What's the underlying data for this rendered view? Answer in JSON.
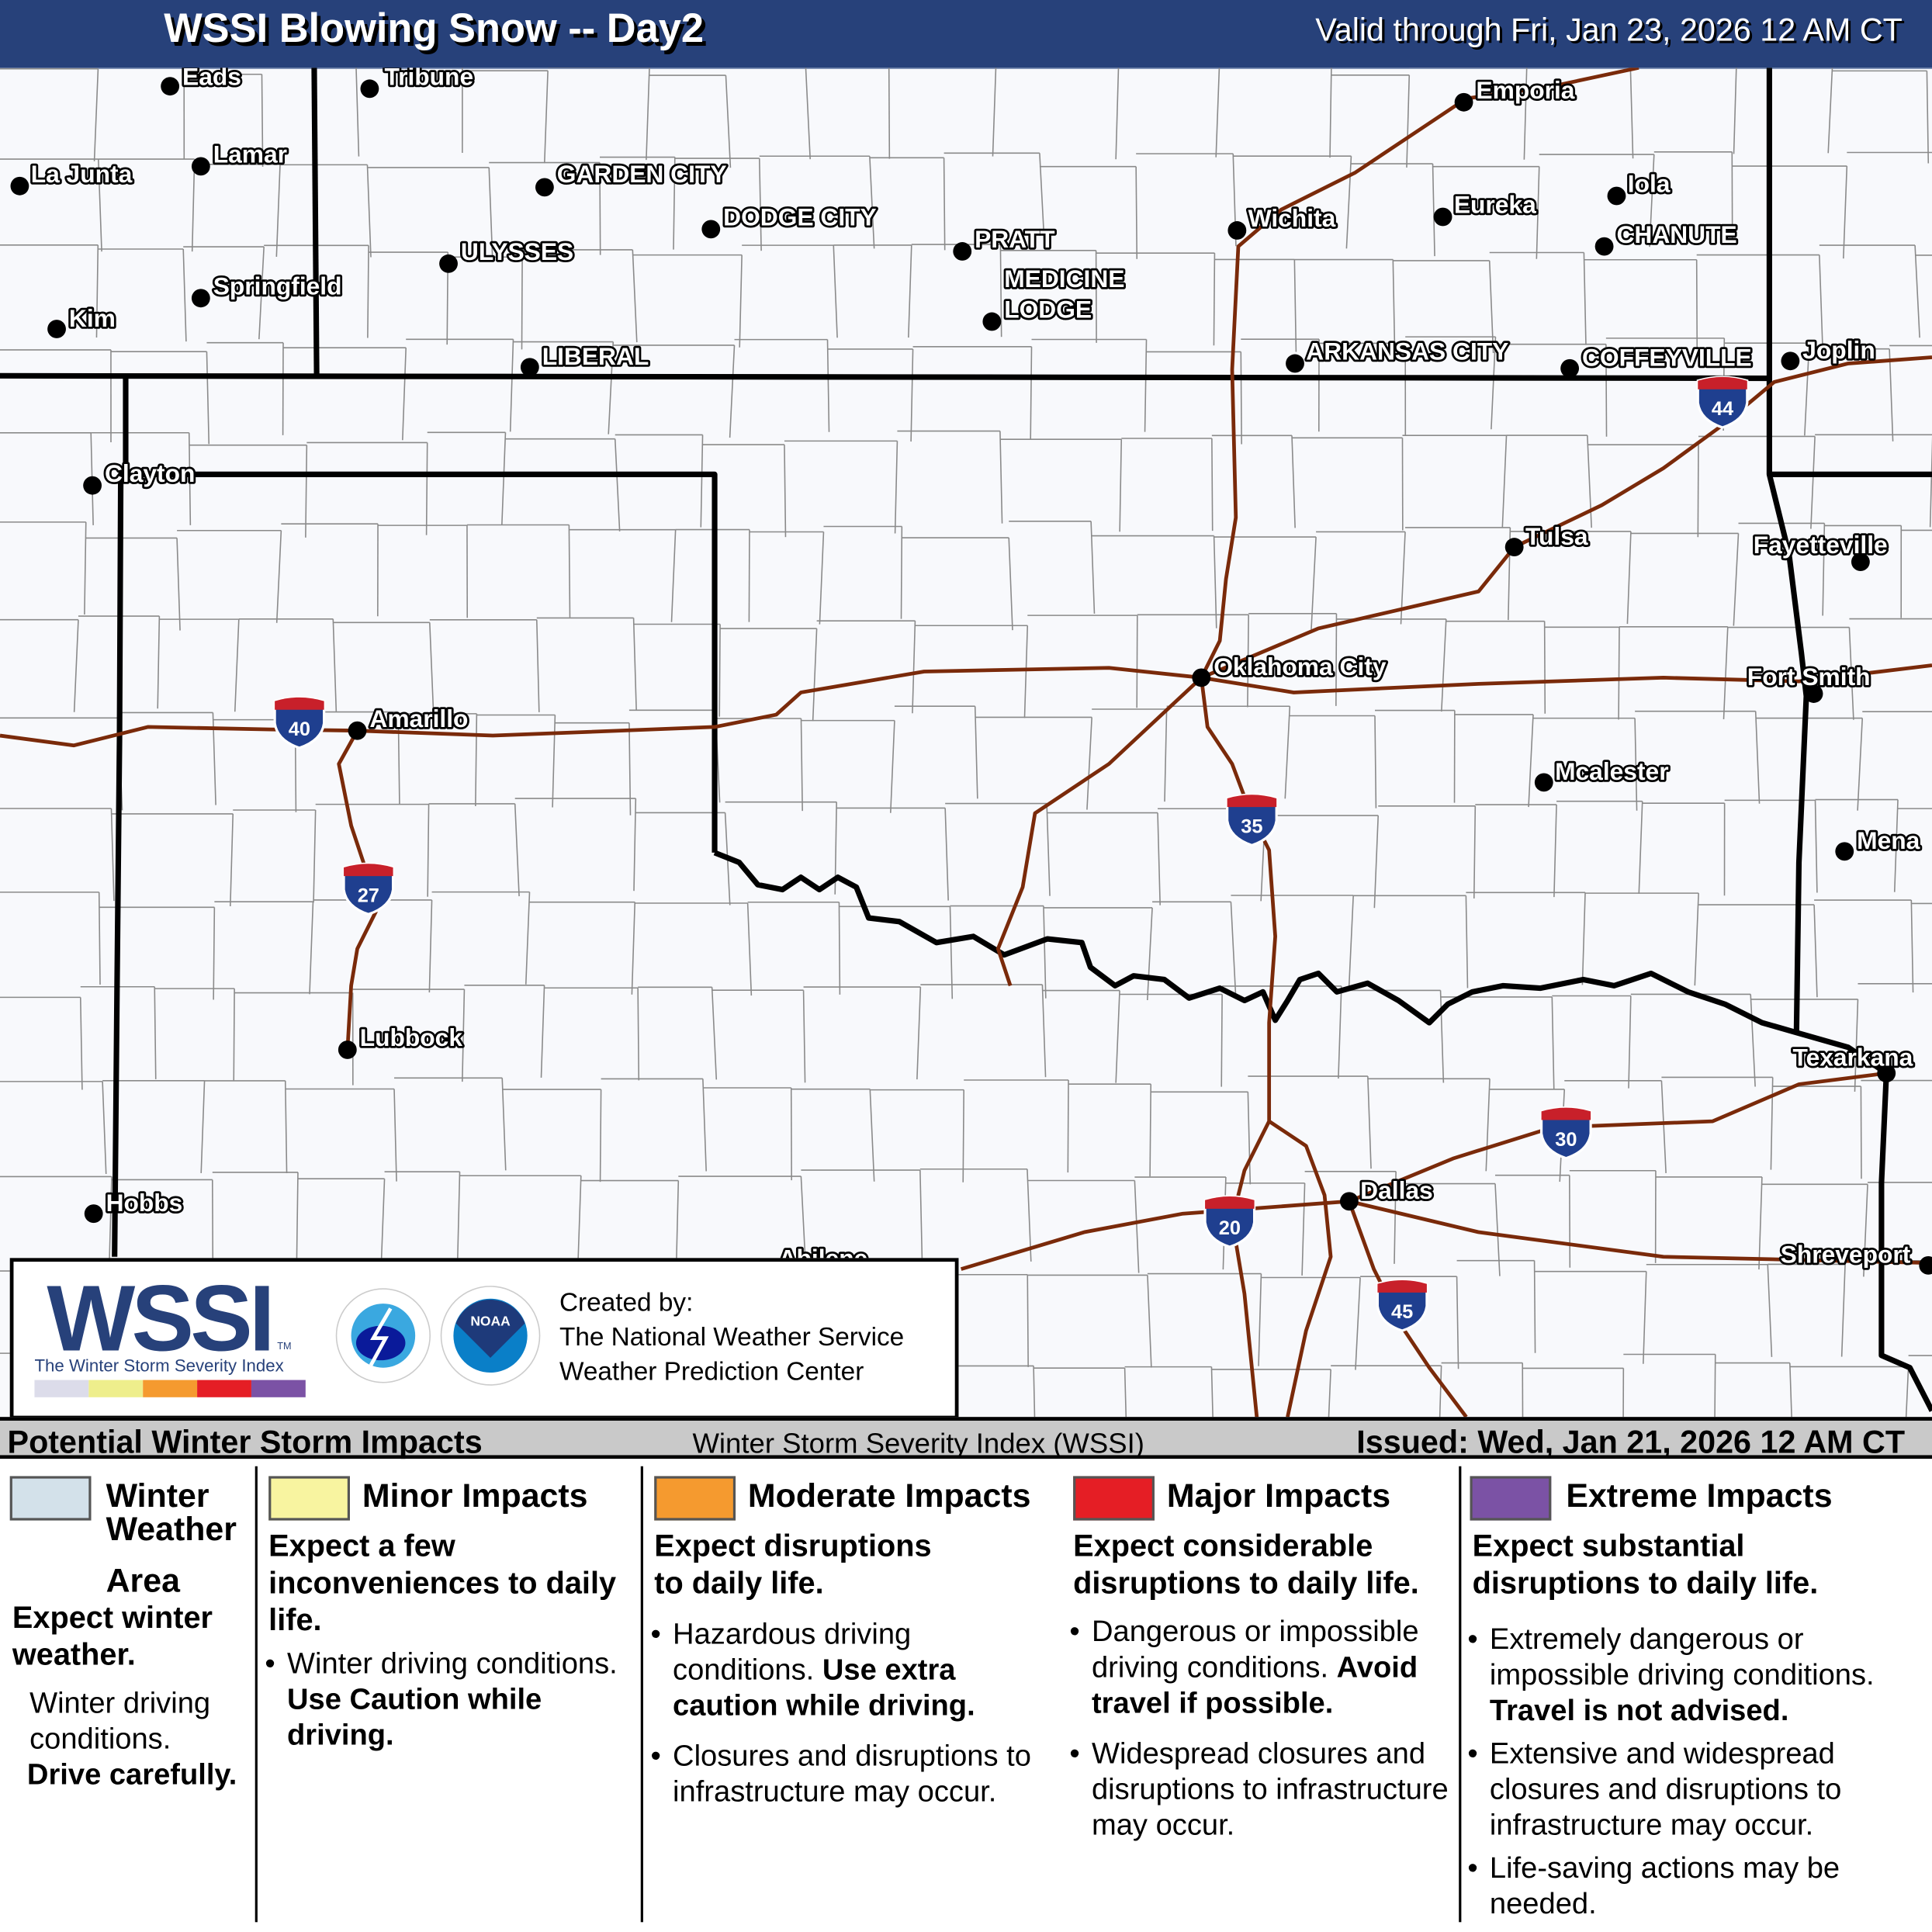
{
  "header": {
    "title": "WSSI Blowing Snow -- Day2",
    "valid": "Valid through Fri, Jan 23, 2026 12 AM CT"
  },
  "colors": {
    "header_bg": "#27417a",
    "interstate": "#7a2a0a",
    "winter_weather_area": "#d3e1ea",
    "minor": "#f8f4a0",
    "moderate": "#f59a2f",
    "major": "#e51e25",
    "extreme": "#7b52a5"
  },
  "cities": [
    {
      "name": "Eads",
      "d": [
        138,
        70
      ],
      "l": [
        148,
        62
      ]
    },
    {
      "name": "Tribune",
      "d": [
        300,
        72
      ],
      "l": [
        312,
        62
      ]
    },
    {
      "name": "La Junta",
      "d": [
        16,
        151
      ],
      "l": [
        25,
        141
      ]
    },
    {
      "name": "Lamar",
      "d": [
        163,
        135
      ],
      "l": [
        173,
        125
      ]
    },
    {
      "name": "GARDEN CITY",
      "d": [
        442,
        152
      ],
      "l": [
        452,
        141
      ]
    },
    {
      "name": "DODGE CITY",
      "d": [
        577,
        186
      ],
      "l": [
        587,
        176
      ]
    },
    {
      "name": "ULYSSES",
      "d": [
        364,
        214
      ],
      "l": [
        374,
        204
      ]
    },
    {
      "name": "Springfield",
      "d": [
        163,
        242
      ],
      "l": [
        173,
        232
      ]
    },
    {
      "name": "Kim",
      "d": [
        46,
        267
      ],
      "l": [
        56,
        258
      ]
    },
    {
      "name": "LIBERAL",
      "d": [
        430,
        298
      ],
      "l": [
        440,
        289
      ]
    },
    {
      "name": "PRATT",
      "d": [
        781,
        204
      ],
      "l": [
        791,
        194
      ]
    },
    {
      "name": "MEDICINE",
      "d": [
        805,
        261
      ],
      "l": [
        815,
        226
      ]
    },
    {
      "name": "LODGE",
      "d": null,
      "l": [
        815,
        251
      ]
    },
    {
      "name": "Wichita",
      "d": [
        1004,
        187
      ],
      "l": [
        1013,
        177
      ]
    },
    {
      "name": "Emporia",
      "d": [
        1188,
        83
      ],
      "l": [
        1198,
        73
      ]
    },
    {
      "name": "Eureka",
      "d": [
        1171,
        176
      ],
      "l": [
        1180,
        166
      ]
    },
    {
      "name": "Iola",
      "d": [
        1312,
        159
      ],
      "l": [
        1321,
        149
      ]
    },
    {
      "name": "CHANUTE",
      "d": [
        1302,
        200
      ],
      "l": [
        1312,
        190
      ]
    },
    {
      "name": "ARKANSAS CITY",
      "d": [
        1051,
        295
      ],
      "l": [
        1060,
        285
      ]
    },
    {
      "name": "COFFEYVILLE",
      "d": [
        1274,
        299
      ],
      "l": [
        1284,
        290
      ]
    },
    {
      "name": "Joplin",
      "d": [
        1453,
        293
      ],
      "l": [
        1463,
        284
      ]
    },
    {
      "name": "Clayton",
      "d": [
        75,
        394
      ],
      "l": [
        85,
        384
      ]
    },
    {
      "name": "Tulsa",
      "d": [
        1229,
        444
      ],
      "l": [
        1238,
        435
      ]
    },
    {
      "name": "Fayetteville",
      "d": [
        1510,
        456
      ],
      "l": [
        1423,
        442
      ]
    },
    {
      "name": "Oklahoma City",
      "d": [
        975,
        550
      ],
      "l": [
        985,
        541
      ]
    },
    {
      "name": "Fort Smith",
      "d": [
        1472,
        563
      ],
      "l": [
        1418,
        549
      ]
    },
    {
      "name": "Amarillo",
      "d": [
        290,
        593
      ],
      "l": [
        300,
        583
      ]
    },
    {
      "name": "Mcalester",
      "d": [
        1253,
        635
      ],
      "l": [
        1262,
        626
      ]
    },
    {
      "name": "Mena",
      "d": [
        1497,
        691
      ],
      "l": [
        1507,
        682
      ]
    },
    {
      "name": "Lubbock",
      "d": [
        282,
        852
      ],
      "l": [
        292,
        842
      ]
    },
    {
      "name": "Texarkana",
      "d": [
        1531,
        871
      ],
      "l": [
        1455,
        858
      ]
    },
    {
      "name": "Hobbs",
      "d": [
        76,
        985
      ],
      "l": [
        86,
        976
      ]
    },
    {
      "name": "Dallas",
      "d": [
        1095,
        975
      ],
      "l": [
        1104,
        966
      ]
    },
    {
      "name": "Abilene",
      "d": null,
      "l": [
        632,
        1021
      ]
    },
    {
      "name": "Shreveport",
      "d": [
        1565,
        1027
      ],
      "l": [
        1445,
        1018
      ]
    }
  ],
  "interstates": [
    {
      "num": "44",
      "at": [
        1398,
        325
      ]
    },
    {
      "num": "40",
      "at": [
        243,
        585
      ]
    },
    {
      "num": "27",
      "at": [
        299,
        720
      ]
    },
    {
      "num": "35",
      "at": [
        1016,
        664
      ]
    },
    {
      "num": "30",
      "at": [
        1271,
        918
      ]
    },
    {
      "num": "20",
      "at": [
        998,
        990
      ]
    },
    {
      "num": "45",
      "at": [
        1138,
        1058
      ]
    }
  ],
  "logo": {
    "wordmark": "WSSI",
    "tm": "TM",
    "subtitle": "The Winter Storm Severity Index",
    "nws_seal": "NATIONAL WEATHER SERVICE",
    "noaa_seal": "NOAA",
    "created_by": "Created by:",
    "org1": "The National Weather Service",
    "org2": "Weather Prediction Center"
  },
  "legend": {
    "title": "Potential Winter Storm Impacts",
    "center": "Winter Storm Severity Index (WSSI)",
    "issued": "Issued: Wed, Jan 21, 2026 12 AM CT",
    "wwa": {
      "h1": "Winter",
      "h2": "Weather",
      "h3": "Area",
      "lead": "Expect winter weather.",
      "t": "Winter driving conditions.",
      "b": "Drive carefully."
    },
    "minor": {
      "h": "Minor Impacts",
      "lead": "Expect a few inconveniences to daily life.",
      "t": "Winter driving conditions.",
      "b": "Use Caution while driving."
    },
    "moderate": {
      "h": "Moderate Impacts",
      "lead": "Expect disruptions to daily life.",
      "t1": "Hazardous driving conditions.",
      "b1": "Use extra caution while driving.",
      "t2": "Closures and disruptions to infrastructure may occur."
    },
    "major": {
      "h": "Major Impacts",
      "lead": "Expect considerable disruptions to daily life.",
      "t1": "Dangerous or impossible driving conditions.",
      "b1": "Avoid travel if possible.",
      "t2": "Widespread closures and disruptions to infrastructure may occur."
    },
    "extreme": {
      "h": "Extreme Impacts",
      "lead": "Expect substantial disruptions to daily life.",
      "t1": "Extremely dangerous or impossible driving conditions.",
      "b1": "Travel is not advised.",
      "t2": "Extensive and widespread closures and disruptions to infrastructure may occur.",
      "t3": "Life-saving actions may be needed."
    }
  }
}
